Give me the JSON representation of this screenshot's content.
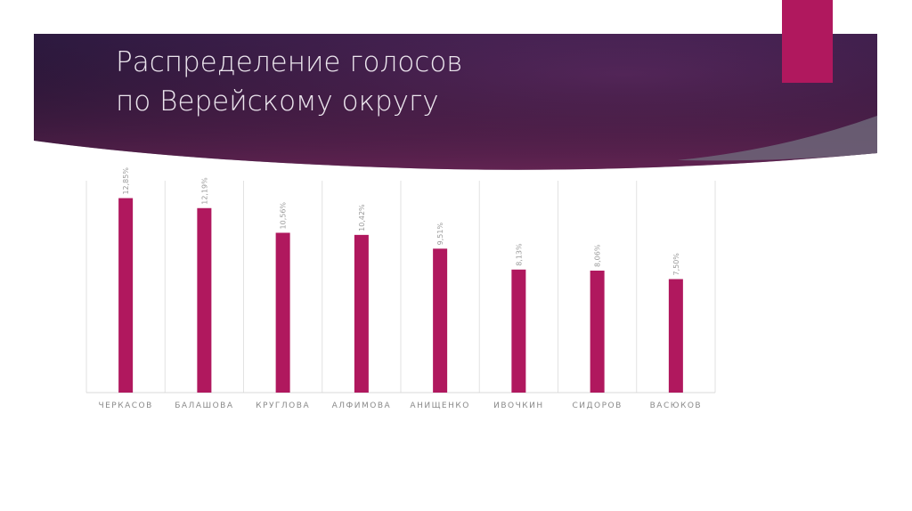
{
  "chart_data": {
    "type": "bar",
    "title": "Распределение голосов\nпо Верейскому округу",
    "categories": [
      "ЧЕРКАСОВ",
      "БАЛАШОВА",
      "КРУГЛОВА",
      "АЛФИМОВА",
      "АНИЩЕНКО",
      "ИВОЧКИН",
      "СИДОРОВ",
      "ВАСЮКОВ"
    ],
    "values": [
      12.85,
      12.19,
      10.56,
      10.42,
      9.51,
      8.13,
      8.06,
      7.5
    ],
    "value_labels": [
      "12,85%",
      "12,19%",
      "10,56%",
      "10,42%",
      "9,51%",
      "8,13%",
      "8,06%",
      "7,50%"
    ],
    "color": "#b0185e",
    "ylim": [
      0,
      14
    ]
  }
}
